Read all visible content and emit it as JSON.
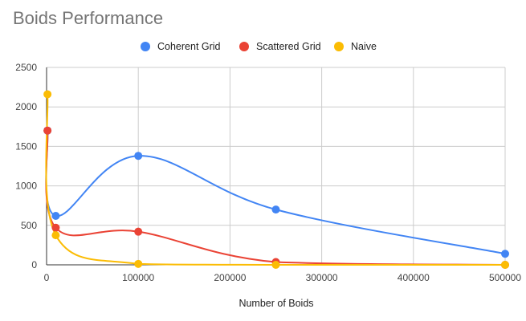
{
  "chart_data": {
    "type": "line",
    "title": "Boids Performance",
    "xlabel": "Number of Boids",
    "ylabel": "",
    "xlim": [
      0,
      500000
    ],
    "ylim": [
      0,
      2500
    ],
    "x_ticks": [
      "0",
      "100000",
      "200000",
      "300000",
      "400000",
      "500000"
    ],
    "y_ticks": [
      "0",
      "500",
      "1000",
      "1500",
      "2000",
      "2500"
    ],
    "grid": true,
    "legend_position": "top",
    "series": [
      {
        "name": "Coherent Grid",
        "color": "#4285f4",
        "points": [
          [
            1000,
            1700
          ],
          [
            10000,
            620
          ],
          [
            100000,
            1380
          ],
          [
            250000,
            700
          ],
          [
            500000,
            140
          ]
        ]
      },
      {
        "name": "Scattered Grid",
        "color": "#ea4335",
        "points": [
          [
            1000,
            1700
          ],
          [
            10000,
            470
          ],
          [
            100000,
            420
          ],
          [
            250000,
            35
          ],
          [
            500000,
            0
          ]
        ]
      },
      {
        "name": "Naive",
        "color": "#fbbc04",
        "points": [
          [
            1000,
            2160
          ],
          [
            10000,
            375
          ],
          [
            100000,
            12
          ],
          [
            250000,
            0
          ],
          [
            500000,
            0
          ]
        ]
      }
    ]
  }
}
